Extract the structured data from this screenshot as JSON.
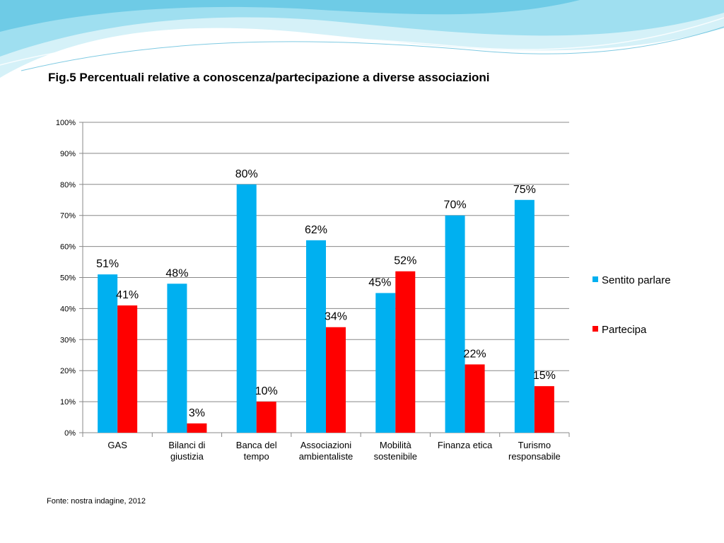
{
  "slide": {
    "title": "Fig.5  Percentuali relative a conoscenza/partecipazione a diverse associazioni",
    "source": "Fonte: nostra indagine, 2012"
  },
  "colors": {
    "series_1": "#00b0f0",
    "series_2": "#ff0000",
    "wave_light": "#bfeaf5",
    "wave_mid": "#7fd3ec",
    "grid": "#888888"
  },
  "chart_data": {
    "type": "bar",
    "title": "Fig.5  Percentuali relative a conoscenza/partecipazione a diverse associazioni",
    "xlabel": "",
    "ylabel": "",
    "ylim": [
      0,
      100
    ],
    "yticks": [
      "0%",
      "10%",
      "20%",
      "30%",
      "40%",
      "50%",
      "60%",
      "70%",
      "80%",
      "90%",
      "100%"
    ],
    "grid": true,
    "legend_position": "right",
    "categories": [
      [
        "GAS"
      ],
      [
        "Bilanci di",
        "giustizia"
      ],
      [
        "Banca del",
        "tempo"
      ],
      [
        "Associazioni",
        "ambientaliste"
      ],
      [
        "Mobilità",
        "sostenibile"
      ],
      [
        "Finanza etica"
      ],
      [
        "Turismo",
        "responsabile"
      ]
    ],
    "series": [
      {
        "name": "Sentito parlare",
        "color": "#00b0f0",
        "values": [
          51,
          48,
          80,
          62,
          45,
          70,
          75
        ]
      },
      {
        "name": "Partecipa",
        "color": "#ff0000",
        "values": [
          41,
          3,
          10,
          34,
          52,
          22,
          15
        ]
      }
    ]
  }
}
